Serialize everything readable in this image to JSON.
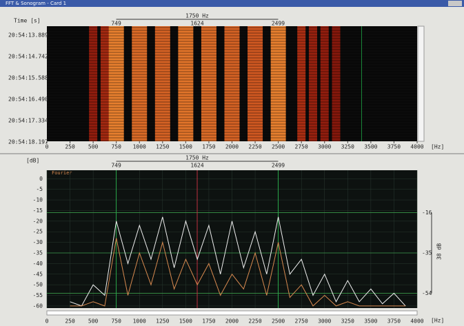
{
  "window": {
    "title": "FFT & Sonogram - Card 1"
  },
  "sonogram": {
    "time_label": "Time [s]",
    "times": [
      "20:54:13.889",
      "20:54:14.742",
      "20:54:15.588",
      "20:54:16.490",
      "20:54:17.334",
      "20:54:18.197"
    ],
    "xlim": [
      0,
      4000
    ],
    "xticks": [
      0,
      250,
      500,
      750,
      1000,
      1250,
      1500,
      1750,
      2000,
      2250,
      2500,
      2750,
      3000,
      3250,
      3500,
      3750,
      4000
    ],
    "x_unit": "[Hz]",
    "span_label": "1750 Hz",
    "markers": [
      749,
      1624,
      2499
    ],
    "bands": [
      500,
      625,
      750,
      1000,
      1250,
      1500,
      1750,
      2000,
      2250,
      2500,
      2750,
      2875,
      3000,
      3125
    ],
    "intensity": [
      0.3,
      0.45,
      1,
      0.9,
      0.85,
      0.95,
      0.9,
      0.85,
      0.8,
      1,
      0.5,
      0.35,
      0.3,
      0.2
    ]
  },
  "spectrum": {
    "y_unit": "[dB]",
    "legend": "Fourier",
    "xlim": [
      0,
      4000
    ],
    "ylim": [
      -61,
      4
    ],
    "yticks": [
      0,
      -5,
      -10,
      -15,
      -20,
      -25,
      -30,
      -35,
      -40,
      -45,
      -50,
      -55,
      -60
    ],
    "xticks": [
      0,
      250,
      500,
      750,
      1000,
      1250,
      1500,
      1750,
      2000,
      2250,
      2500,
      2750,
      3000,
      3250,
      3500,
      3750,
      4000
    ],
    "x_unit": "[Hz]",
    "span_label": "1750 Hz",
    "markers": [
      749,
      1624,
      2499
    ],
    "right_ticks": [
      -16,
      -35,
      -54
    ],
    "right_label": "38 dB",
    "x": [
      250,
      375,
      500,
      625,
      750,
      875,
      1000,
      1125,
      1250,
      1375,
      1500,
      1625,
      1750,
      1875,
      2000,
      2125,
      2250,
      2375,
      2500,
      2625,
      2750,
      2875,
      3000,
      3125,
      3250,
      3375,
      3500,
      3625,
      3750,
      3875
    ],
    "series": [
      {
        "color": "#f0f0f0",
        "values": [
          -58,
          -60,
          -50,
          -55,
          -20,
          -40,
          -22,
          -38,
          -18,
          -42,
          -20,
          -38,
          -22,
          -45,
          -20,
          -42,
          -25,
          -45,
          -18,
          -45,
          -38,
          -55,
          -45,
          -58,
          -48,
          -58,
          -52,
          -59,
          -54,
          -60
        ]
      },
      {
        "color": "#d88a50",
        "values": [
          -60,
          -60,
          -58,
          -60,
          -28,
          -55,
          -35,
          -50,
          -30,
          -52,
          -38,
          -50,
          -40,
          -55,
          -45,
          -52,
          -35,
          -55,
          -30,
          -56,
          -50,
          -60,
          -55,
          -60,
          -58,
          -60,
          -60,
          -60,
          -60,
          -60
        ]
      }
    ]
  }
}
